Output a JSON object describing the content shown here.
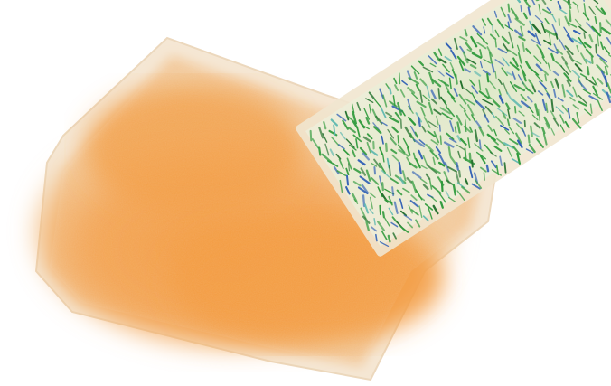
{
  "scene": {
    "subject": "volume-rendering",
    "colors": {
      "background": "#ffffff",
      "volume_core": "#f4a047",
      "volume_mid": "#f2b26c",
      "volume_edge": "#f3dcc0",
      "volume_rim": "#efe6d6",
      "glyph_green": "#2f9a3c",
      "glyph_dark_green": "#1f6e2a",
      "glyph_blue": "#2f5fb5",
      "glyph_cyan": "#5fb8b0",
      "plate_base": "#e6efd6",
      "plate_rim": "#f1e6cf"
    }
  }
}
